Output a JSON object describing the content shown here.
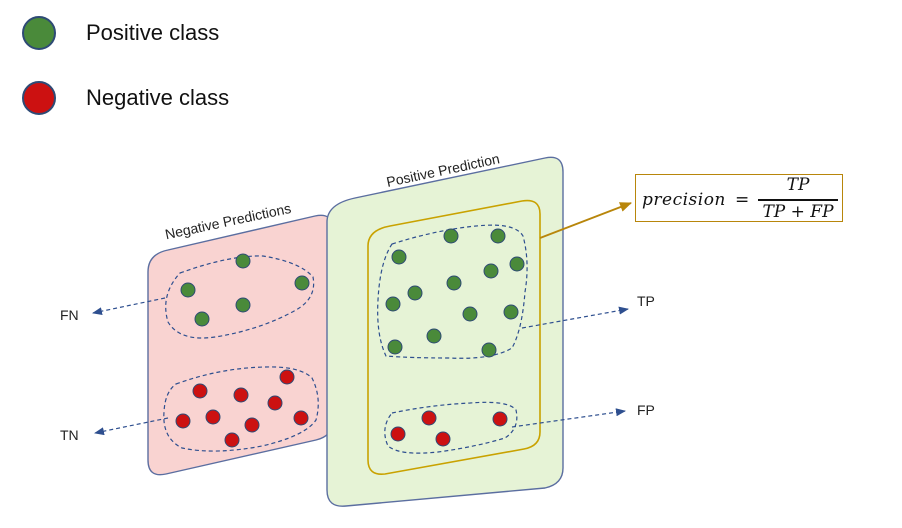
{
  "legend": {
    "positive_label": "Positive class",
    "negative_label": "Negative class",
    "positive_color": "#4a8a3a",
    "negative_color": "#cc1111"
  },
  "panels": {
    "negative_title": "Negative Predictions",
    "positive_title": "Positive Prediction",
    "negative_fill": "#f9d3d1",
    "positive_fill": "#e6f3d6"
  },
  "outcomes": {
    "fn": "FN",
    "tn": "TN",
    "tp": "TP",
    "fp": "FP"
  },
  "formula": {
    "lhs": "precision",
    "eq": "=",
    "numerator": "TP",
    "denominator": "TP + FP"
  }
}
